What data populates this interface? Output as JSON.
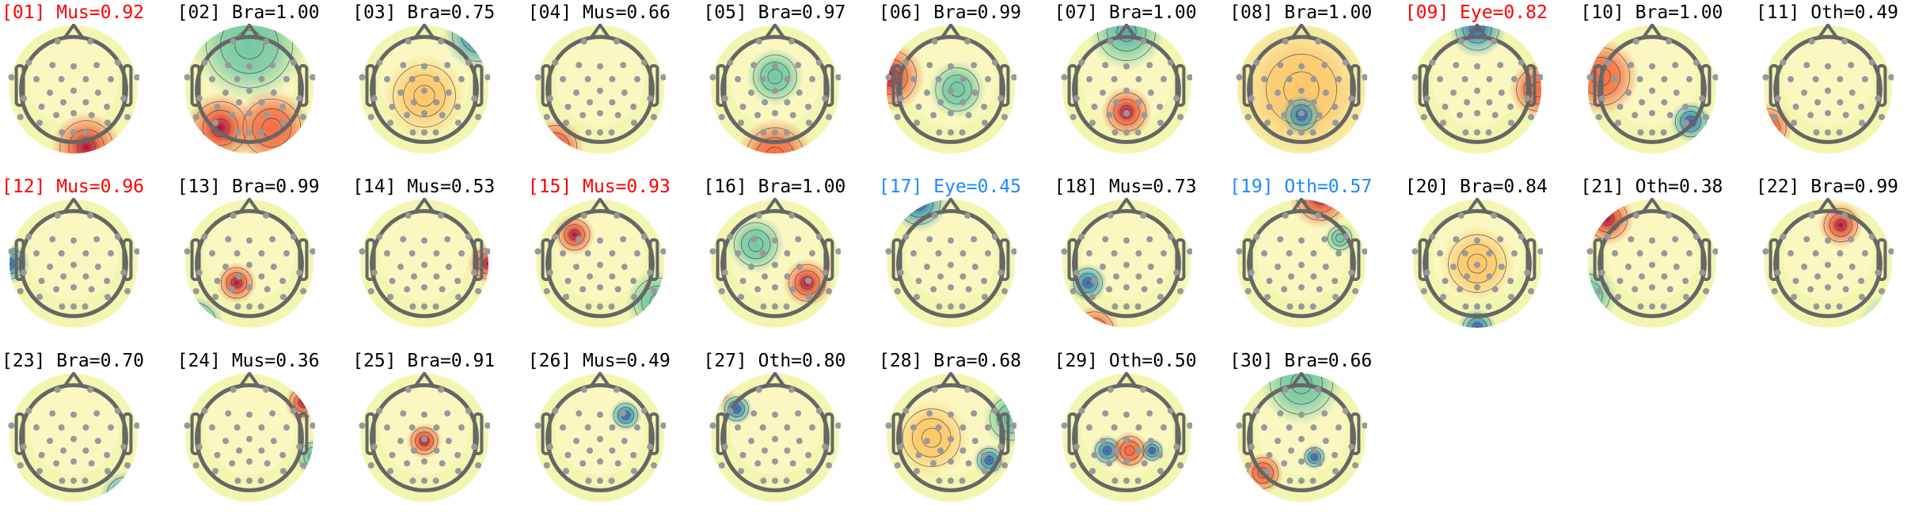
{
  "chart_data": {
    "type": "topomap",
    "title": "",
    "layout": {
      "columns": 11,
      "rows": 3
    },
    "colormap": "Spectral_r",
    "label_colors": {
      "default": "#000000",
      "flagged_red": "#ff0000",
      "flagged_blue": "#1e88ff"
    },
    "components": [
      {
        "title": "[01] Mus=0.92",
        "index": 1,
        "label": "Mus",
        "score": 0.92,
        "color": "#ff0000"
      },
      {
        "title": "[02] Bra=1.00",
        "index": 2,
        "label": "Bra",
        "score": 1.0,
        "color": "#000000"
      },
      {
        "title": "[03] Bra=0.75",
        "index": 3,
        "label": "Bra",
        "score": 0.75,
        "color": "#000000"
      },
      {
        "title": "[04] Mus=0.66",
        "index": 4,
        "label": "Mus",
        "score": 0.66,
        "color": "#000000"
      },
      {
        "title": "[05] Bra=0.97",
        "index": 5,
        "label": "Bra",
        "score": 0.97,
        "color": "#000000"
      },
      {
        "title": "[06] Bra=0.99",
        "index": 6,
        "label": "Bra",
        "score": 0.99,
        "color": "#000000"
      },
      {
        "title": "[07] Bra=1.00",
        "index": 7,
        "label": "Bra",
        "score": 1.0,
        "color": "#000000"
      },
      {
        "title": "[08] Bra=1.00",
        "index": 8,
        "label": "Bra",
        "score": 1.0,
        "color": "#000000"
      },
      {
        "title": "[09] Eye=0.82",
        "index": 9,
        "label": "Eye",
        "score": 0.82,
        "color": "#ff0000"
      },
      {
        "title": "[10] Bra=1.00",
        "index": 10,
        "label": "Bra",
        "score": 1.0,
        "color": "#000000"
      },
      {
        "title": "[11] Oth=0.49",
        "index": 11,
        "label": "Oth",
        "score": 0.49,
        "color": "#000000"
      },
      {
        "title": "[12] Mus=0.96",
        "index": 12,
        "label": "Mus",
        "score": 0.96,
        "color": "#ff0000"
      },
      {
        "title": "[13] Bra=0.99",
        "index": 13,
        "label": "Bra",
        "score": 0.99,
        "color": "#000000"
      },
      {
        "title": "[14] Mus=0.53",
        "index": 14,
        "label": "Mus",
        "score": 0.53,
        "color": "#000000"
      },
      {
        "title": "[15] Mus=0.93",
        "index": 15,
        "label": "Mus",
        "score": 0.93,
        "color": "#ff0000"
      },
      {
        "title": "[16] Bra=1.00",
        "index": 16,
        "label": "Bra",
        "score": 1.0,
        "color": "#000000"
      },
      {
        "title": "[17] Eye=0.45",
        "index": 17,
        "label": "Eye",
        "score": 0.45,
        "color": "#1e88ff"
      },
      {
        "title": "[18] Mus=0.73",
        "index": 18,
        "label": "Mus",
        "score": 0.73,
        "color": "#000000"
      },
      {
        "title": "[19] Oth=0.57",
        "index": 19,
        "label": "Oth",
        "score": 0.57,
        "color": "#1e88ff"
      },
      {
        "title": "[20] Bra=0.84",
        "index": 20,
        "label": "Bra",
        "score": 0.84,
        "color": "#000000"
      },
      {
        "title": "[21] Oth=0.38",
        "index": 21,
        "label": "Oth",
        "score": 0.38,
        "color": "#000000"
      },
      {
        "title": "[22] Bra=0.99",
        "index": 22,
        "label": "Bra",
        "score": 0.99,
        "color": "#000000"
      },
      {
        "title": "[23] Bra=0.70",
        "index": 23,
        "label": "Bra",
        "score": 0.7,
        "color": "#000000"
      },
      {
        "title": "[24] Mus=0.36",
        "index": 24,
        "label": "Mus",
        "score": 0.36,
        "color": "#000000"
      },
      {
        "title": "[25] Bra=0.91",
        "index": 25,
        "label": "Bra",
        "score": 0.91,
        "color": "#000000"
      },
      {
        "title": "[26] Mus=0.49",
        "index": 26,
        "label": "Mus",
        "score": 0.49,
        "color": "#000000"
      },
      {
        "title": "[27] Oth=0.80",
        "index": 27,
        "label": "Oth",
        "score": 0.8,
        "color": "#000000"
      },
      {
        "title": "[28] Bra=0.68",
        "index": 28,
        "label": "Bra",
        "score": 0.68,
        "color": "#000000"
      },
      {
        "title": "[29] Oth=0.50",
        "index": 29,
        "label": "Oth",
        "score": 0.5,
        "color": "#000000"
      },
      {
        "title": "[30] Bra=0.66",
        "index": 30,
        "label": "Bra",
        "score": 0.66,
        "color": "#000000"
      }
    ]
  }
}
